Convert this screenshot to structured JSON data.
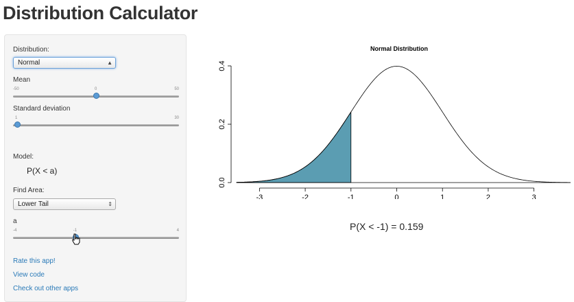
{
  "page_title": "Distribution Calculator",
  "sidebar": {
    "distribution": {
      "label": "Distribution:",
      "value": "Normal"
    },
    "mean": {
      "label": "Mean",
      "min": "-50",
      "max": "50",
      "value": "0",
      "fraction": 0.5
    },
    "sd": {
      "label": "Standard deviation",
      "min": "1",
      "max": "30",
      "value": "1",
      "fraction": 0.0
    },
    "model": {
      "label": "Model:",
      "formula": "P(X < a)"
    },
    "find_area": {
      "label": "Find Area:",
      "value": "Lower Tail"
    },
    "a": {
      "label": "a",
      "min": "-4",
      "max": "4",
      "value": "-1",
      "fraction": 0.375
    },
    "links": [
      "Rate this app!",
      "View code",
      "Check out other apps"
    ]
  },
  "chart_data": {
    "type": "area",
    "title": "Normal Distribution",
    "xlim": [
      -3.5,
      3.8
    ],
    "ylim": [
      0,
      0.4
    ],
    "x_ticks": [
      "-3",
      "-2",
      "-1",
      "0",
      "1",
      "2",
      "3"
    ],
    "y_ticks": [
      "0.0",
      "0.2",
      "0.4"
    ],
    "mean": 0,
    "sd": 1,
    "shaded_upper": -1,
    "shade_color": "#5b9db2"
  },
  "result_text": "P(X < -1) = 0.159"
}
